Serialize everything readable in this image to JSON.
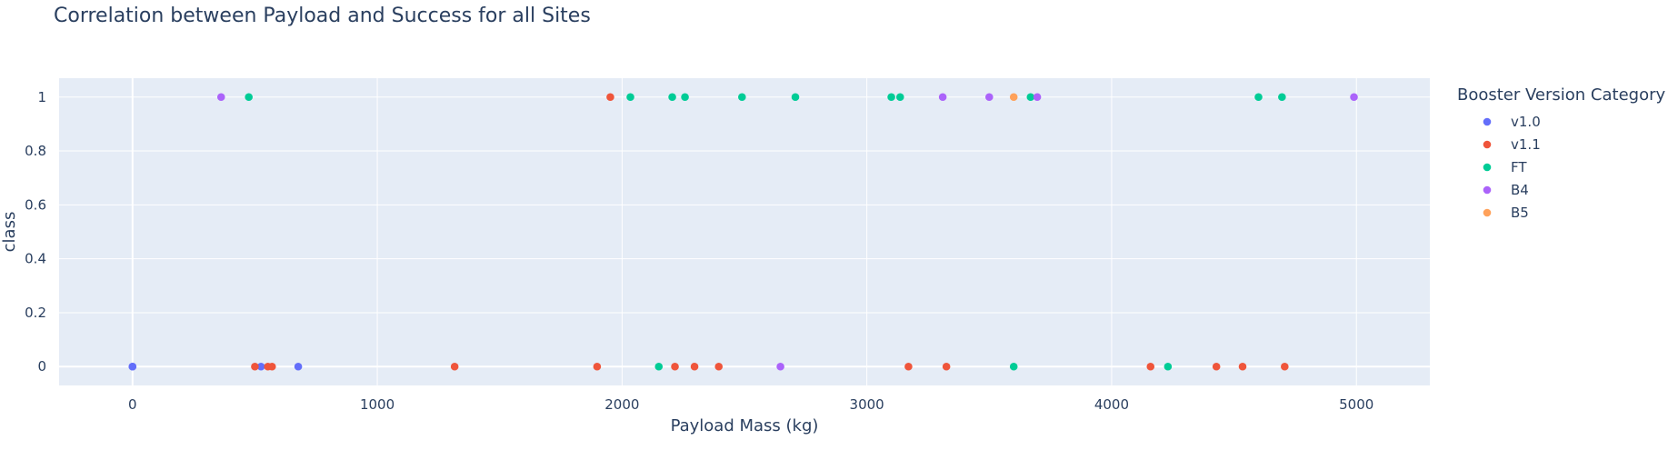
{
  "chart_data": {
    "type": "scatter",
    "title": "Correlation between Payload and Success for all Sites",
    "xlabel": "Payload Mass (kg)",
    "ylabel": "class",
    "xlim": [
      -300,
      5300
    ],
    "ylim": [
      -0.07,
      1.07
    ],
    "x_ticks": [
      0,
      1000,
      2000,
      3000,
      4000,
      5000
    ],
    "y_ticks": [
      0,
      0.2,
      0.4,
      0.6,
      0.8,
      1
    ],
    "grid": true,
    "legend": {
      "title": "Booster Version Category",
      "position": "right"
    },
    "series": [
      {
        "name": "v1.0",
        "color": "#636efa",
        "points": [
          [
            0,
            0
          ],
          [
            0,
            0
          ],
          [
            525,
            0
          ],
          [
            677,
            0
          ]
        ]
      },
      {
        "name": "v1.1",
        "color": "#ef553b",
        "points": [
          [
            500,
            0
          ],
          [
            553,
            0
          ],
          [
            570,
            0
          ],
          [
            1316,
            0
          ],
          [
            1898,
            0
          ],
          [
            2216,
            0
          ],
          [
            2296,
            0
          ],
          [
            2395,
            0
          ],
          [
            3170,
            0
          ],
          [
            3325,
            0
          ],
          [
            4159,
            0
          ],
          [
            4428,
            0
          ],
          [
            4535,
            0
          ],
          [
            4707,
            0
          ],
          [
            1952,
            1
          ]
        ]
      },
      {
        "name": "FT",
        "color": "#00cc96",
        "points": [
          [
            475,
            1
          ],
          [
            2034,
            1
          ],
          [
            2205,
            1
          ],
          [
            2257,
            1
          ],
          [
            2490,
            1
          ],
          [
            2708,
            1
          ],
          [
            3100,
            1
          ],
          [
            3136,
            1
          ],
          [
            3669,
            1
          ],
          [
            4600,
            1
          ],
          [
            4696,
            1
          ],
          [
            2150,
            0
          ],
          [
            3600,
            0
          ],
          [
            4230,
            0
          ]
        ]
      },
      {
        "name": "B4",
        "color": "#ab63fa",
        "points": [
          [
            362,
            1
          ],
          [
            3310,
            1
          ],
          [
            3500,
            1
          ],
          [
            3696,
            1
          ],
          [
            4990,
            1
          ],
          [
            2647,
            0
          ]
        ]
      },
      {
        "name": "B5",
        "color": "#ffa15a",
        "points": [
          [
            3600,
            1
          ]
        ]
      }
    ]
  }
}
